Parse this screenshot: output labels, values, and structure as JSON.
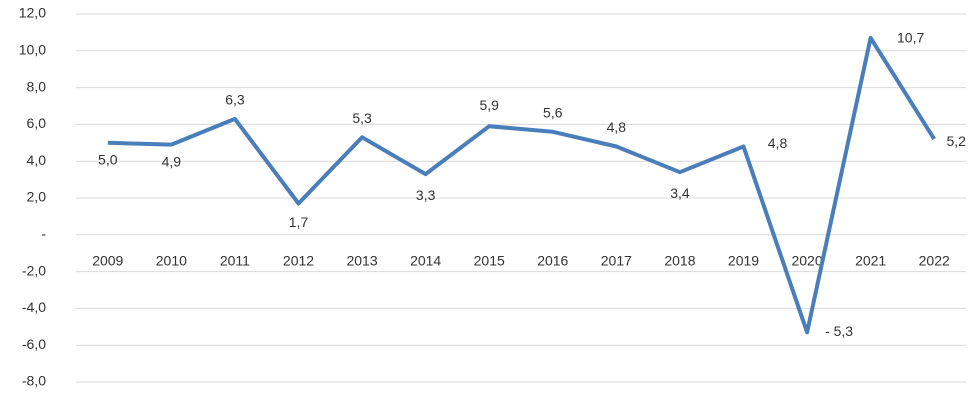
{
  "chart_data": {
    "type": "line",
    "categories": [
      "2009",
      "2010",
      "2011",
      "2012",
      "2013",
      "2014",
      "2015",
      "2016",
      "2017",
      "2018",
      "2019",
      "2020",
      "2021",
      "2022"
    ],
    "series": [
      {
        "color": "#4a7ebb",
        "values": [
          5.0,
          4.9,
          6.3,
          1.7,
          5.3,
          3.3,
          5.9,
          5.6,
          4.8,
          3.4,
          4.8,
          -5.3,
          10.7,
          5.2
        ],
        "value_labels": [
          "5,0",
          "4,9",
          "6,3",
          "1,7",
          "5,3",
          "3,3",
          "5,9",
          "5,6",
          "4,8",
          "3,4",
          "4,8",
          "- 5,3",
          "10,7",
          "5,2"
        ]
      }
    ],
    "ylim": [
      -8,
      12
    ],
    "yticks": [
      {
        "value": -8,
        "label": "-8,0"
      },
      {
        "value": -6,
        "label": "-6,0"
      },
      {
        "value": -4,
        "label": "-4,0"
      },
      {
        "value": -2,
        "label": "-2,0"
      },
      {
        "value": 0,
        "label": "-"
      },
      {
        "value": 2,
        "label": "2,0"
      },
      {
        "value": 4,
        "label": "4,0"
      },
      {
        "value": 6,
        "label": "6,0"
      },
      {
        "value": 8,
        "label": "8,0"
      },
      {
        "value": 10,
        "label": "10,0"
      },
      {
        "value": 12,
        "label": "12,0"
      }
    ],
    "grid": true
  }
}
